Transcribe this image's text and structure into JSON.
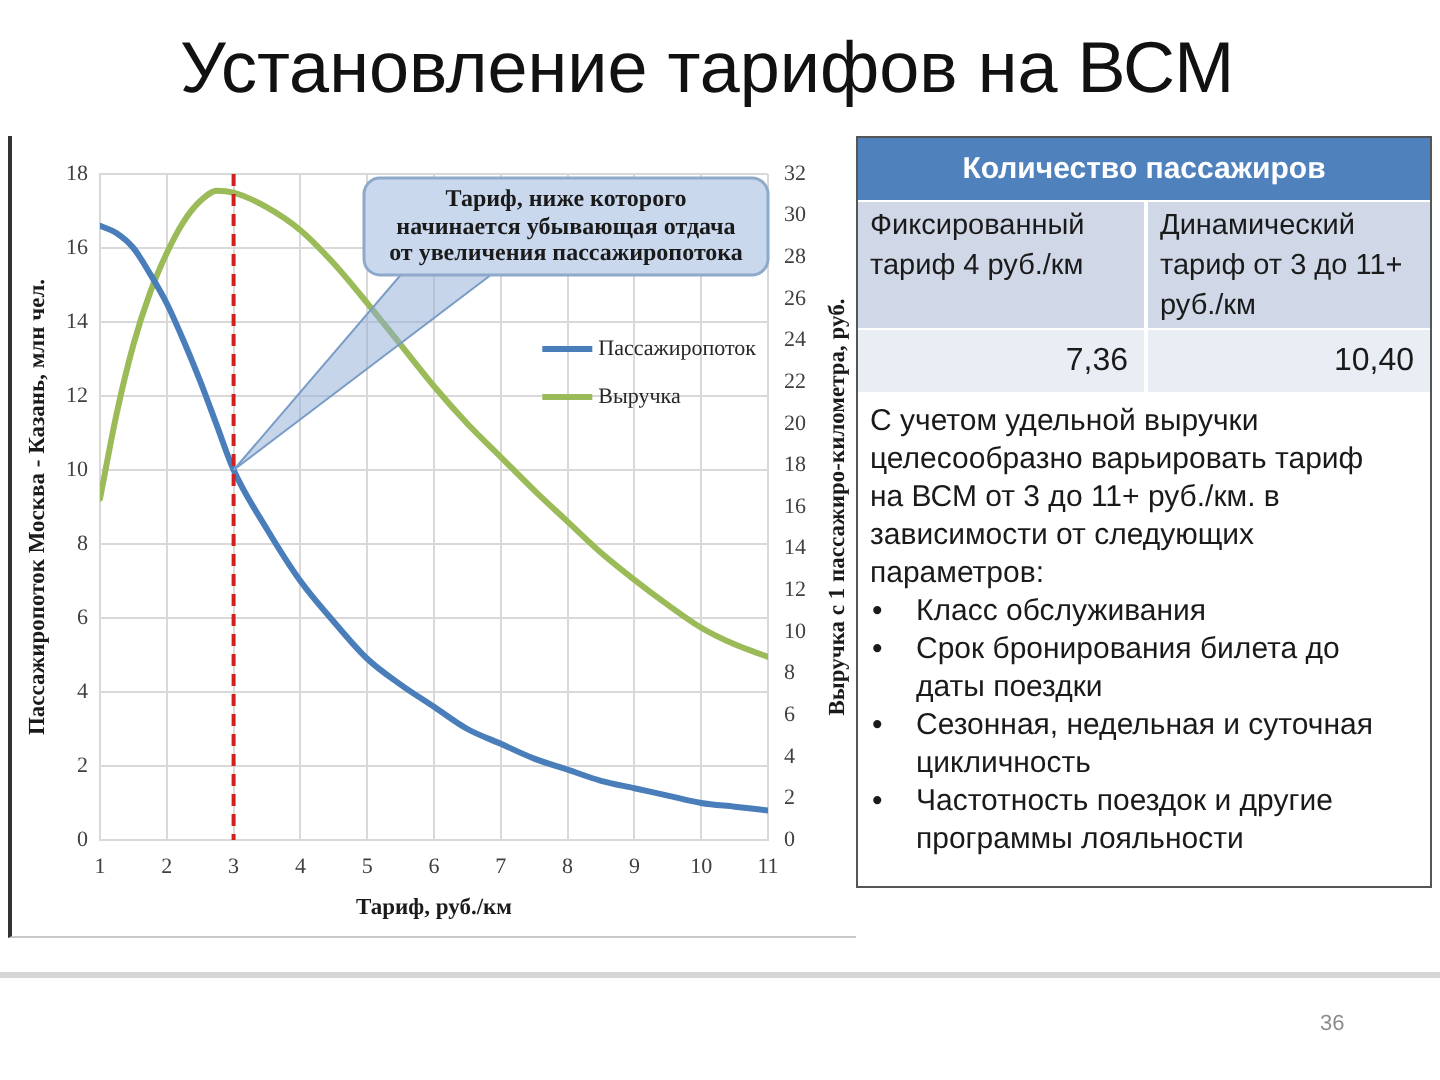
{
  "chart_data": [
    {
      "type": "line",
      "title": "Установление тарифов на ВСМ",
      "xlabel": "Тариф, руб./км",
      "ylabel": "Пассажиропоток Москва - Казань, млн чел.",
      "y2label": "Выручка с 1 пассажиро-километра, руб.",
      "x": [
        1,
        1.25,
        1.5,
        1.75,
        2,
        2.25,
        2.5,
        2.75,
        3,
        3.5,
        4,
        4.5,
        5,
        5.5,
        6,
        6.5,
        7,
        7.5,
        8,
        8.5,
        9,
        9.5,
        10,
        10.5,
        11
      ],
      "xlim": [
        1,
        11
      ],
      "xticks": [
        1,
        2,
        3,
        4,
        5,
        6,
        7,
        8,
        9,
        10,
        11
      ],
      "ylim": [
        0,
        18
      ],
      "yticks": [
        0,
        2,
        4,
        6,
        8,
        10,
        12,
        14,
        16,
        18
      ],
      "y2lim": [
        0,
        32
      ],
      "y2ticks": [
        0,
        2,
        4,
        6,
        8,
        10,
        12,
        14,
        16,
        18,
        20,
        22,
        24,
        26,
        28,
        30,
        32
      ],
      "series": [
        {
          "name": "Пассажиропоток",
          "color": "#4a7ebb",
          "values": [
            16.6,
            16.4,
            16.0,
            15.3,
            14.5,
            13.5,
            12.4,
            11.2,
            10.0,
            8.4,
            7.0,
            5.9,
            4.9,
            4.2,
            3.6,
            3.0,
            2.6,
            2.2,
            1.9,
            1.6,
            1.4,
            1.2,
            1.0,
            0.9,
            0.8
          ]
        },
        {
          "name": "Выручка",
          "color": "#9bbb59",
          "axis": "y2",
          "values": [
            16.4,
            20.5,
            23.8,
            26.3,
            28.2,
            29.7,
            30.7,
            31.2,
            31.1,
            30.4,
            29.3,
            27.7,
            25.8,
            23.8,
            21.8,
            20.0,
            18.4,
            16.8,
            15.3,
            13.8,
            12.5,
            11.3,
            10.2,
            9.4,
            8.8
          ]
        }
      ],
      "ref_lines": [
        {
          "axis": "x",
          "value": 3,
          "color": "#d02020",
          "line_style": "dashed"
        }
      ],
      "annotations": [
        "Тариф, ниже которого начинается убывающая отдача от увеличения пассажиропотока",
        "36"
      ],
      "grid": true,
      "legend": "top right",
      "marker": "none",
      "line_style": "solid"
    },
    {
      "type": "other",
      "title": "Количество пассажиров",
      "annotations": [
        "Фиксированный тариф 4 руб./км",
        "Динамический тариф от 3 до 11+ руб./км",
        "7,36",
        "10,40",
        "С учетом удельной выручки целесообразно варьировать тариф на ВСМ от 3 до 11+ руб./км. в зависимости от следующих параметров:",
        "• Класс обслуживания",
        "• Срок бронирования билета до даты поездки",
        "• Сезонная, недельная и суточная цикличность",
        "• Частотность поездок и другие программы лояльности"
      ]
    }
  ]
}
